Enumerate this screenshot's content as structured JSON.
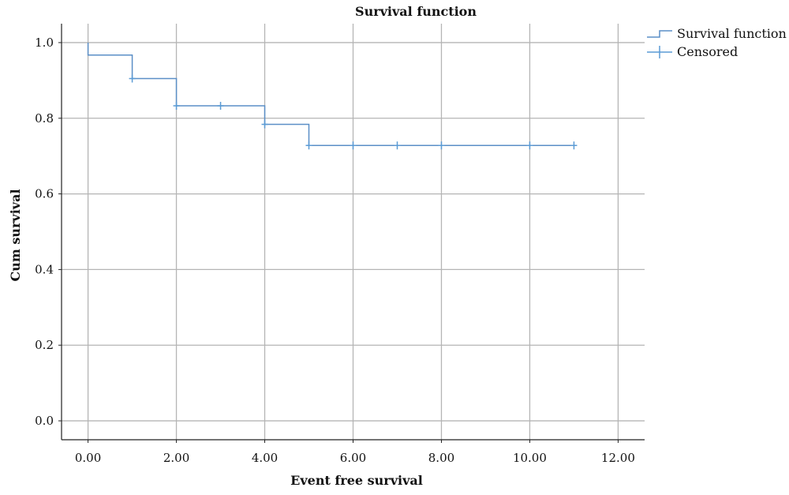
{
  "chart_data": {
    "type": "line",
    "title": "Survival function",
    "xlabel": "Event free survival",
    "ylabel": "Cum survival",
    "xlim": [
      -0.6,
      12.6
    ],
    "ylim": [
      -0.05,
      1.05
    ],
    "x_ticks": [
      0,
      2,
      4,
      6,
      8,
      10,
      12
    ],
    "x_tick_labels": [
      "0.00",
      "2.00",
      "4.00",
      "6.00",
      "8.00",
      "10.00",
      "12.00"
    ],
    "y_ticks": [
      0.0,
      0.2,
      0.4,
      0.6,
      0.8,
      1.0
    ],
    "y_tick_labels": [
      "0.0",
      "0.2",
      "0.4",
      "0.6",
      "0.8",
      "1.0"
    ],
    "grid": true,
    "legend_position": "top-right",
    "colors": {
      "survival": "#5b8fc7",
      "censored": "#5b9bd5"
    },
    "series": [
      {
        "name": "Survival function",
        "type": "step",
        "x": [
          0,
          0,
          1.0,
          2.0,
          4.0,
          5.0,
          11.0
        ],
        "y": [
          1.0,
          0.967,
          0.905,
          0.833,
          0.784,
          0.728,
          0.728
        ]
      },
      {
        "name": "Censored",
        "type": "marker",
        "x": [
          1.0,
          2.0,
          3.0,
          4.0,
          5.0,
          6.0,
          7.0,
          8.0,
          10.0,
          11.0
        ],
        "y": [
          0.905,
          0.833,
          0.833,
          0.784,
          0.728,
          0.728,
          0.728,
          0.728,
          0.728,
          0.728
        ]
      }
    ]
  }
}
